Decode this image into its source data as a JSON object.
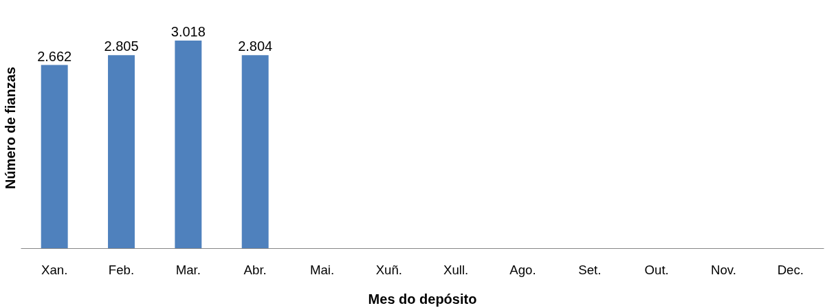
{
  "chart_data": {
    "type": "bar",
    "xlabel": "Mes do depósito",
    "ylabel": "Número de fianzas",
    "categories": [
      "Xan.",
      "Feb.",
      "Mar.",
      "Abr.",
      "Mai.",
      "Xuñ.",
      "Xull.",
      "Ago.",
      "Set.",
      "Out.",
      "Nov.",
      "Dec."
    ],
    "values": [
      2662,
      2805,
      3018,
      2804,
      null,
      null,
      null,
      null,
      null,
      null,
      null,
      null
    ],
    "value_labels": [
      "2.662",
      "2.805",
      "3.018",
      "2.804",
      null,
      null,
      null,
      null,
      null,
      null,
      null,
      null
    ],
    "color": "#4f81bd",
    "grid": false
  }
}
